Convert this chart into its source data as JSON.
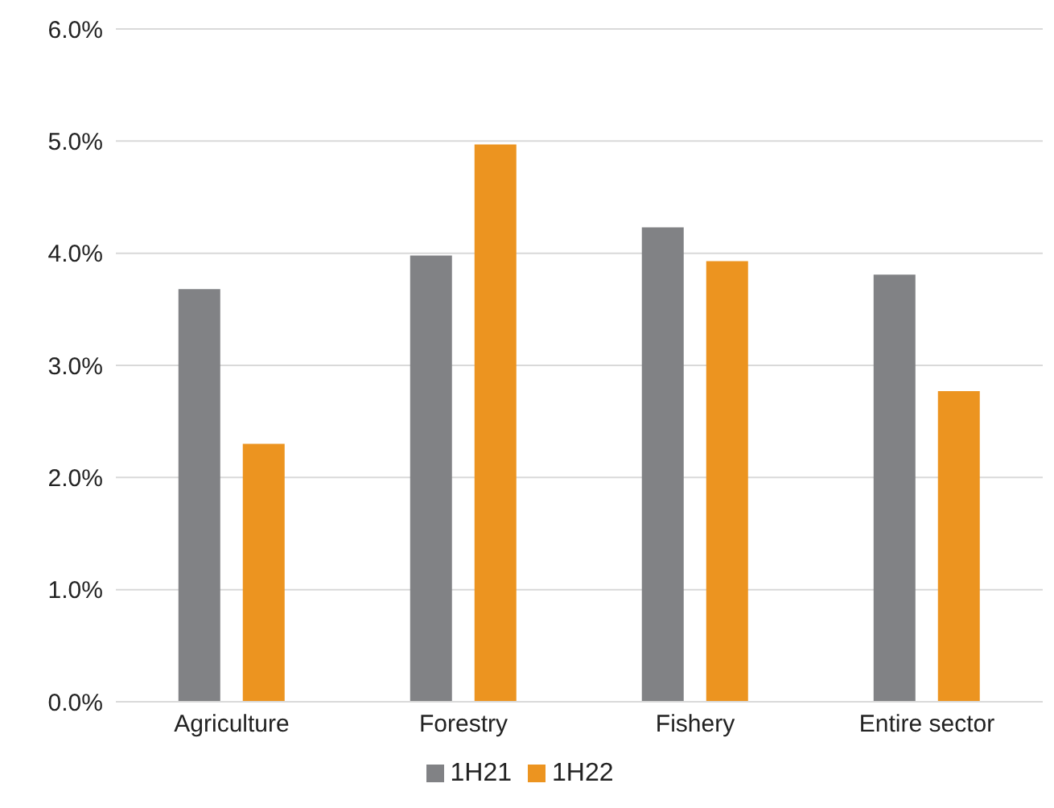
{
  "chart_data": {
    "type": "bar",
    "categories": [
      "Agriculture",
      "Forestry",
      "Fishery",
      "Entire sector"
    ],
    "series": [
      {
        "name": "1H21",
        "color": "#818285",
        "values": [
          3.68,
          3.98,
          4.23,
          3.81
        ]
      },
      {
        "name": "1H22",
        "color": "#ec9420",
        "values": [
          2.3,
          4.97,
          3.93,
          2.77
        ]
      }
    ],
    "ylim": [
      0,
      6
    ],
    "yticks": [
      {
        "value": 0,
        "label": "0.0%"
      },
      {
        "value": 1,
        "label": "1.0%"
      },
      {
        "value": 2,
        "label": "2.0%"
      },
      {
        "value": 3,
        "label": "3.0%"
      },
      {
        "value": 4,
        "label": "4.0%"
      },
      {
        "value": 5,
        "label": "5.0%"
      },
      {
        "value": 6,
        "label": "6.0%"
      }
    ],
    "grid": "y",
    "legend": "bottom"
  }
}
